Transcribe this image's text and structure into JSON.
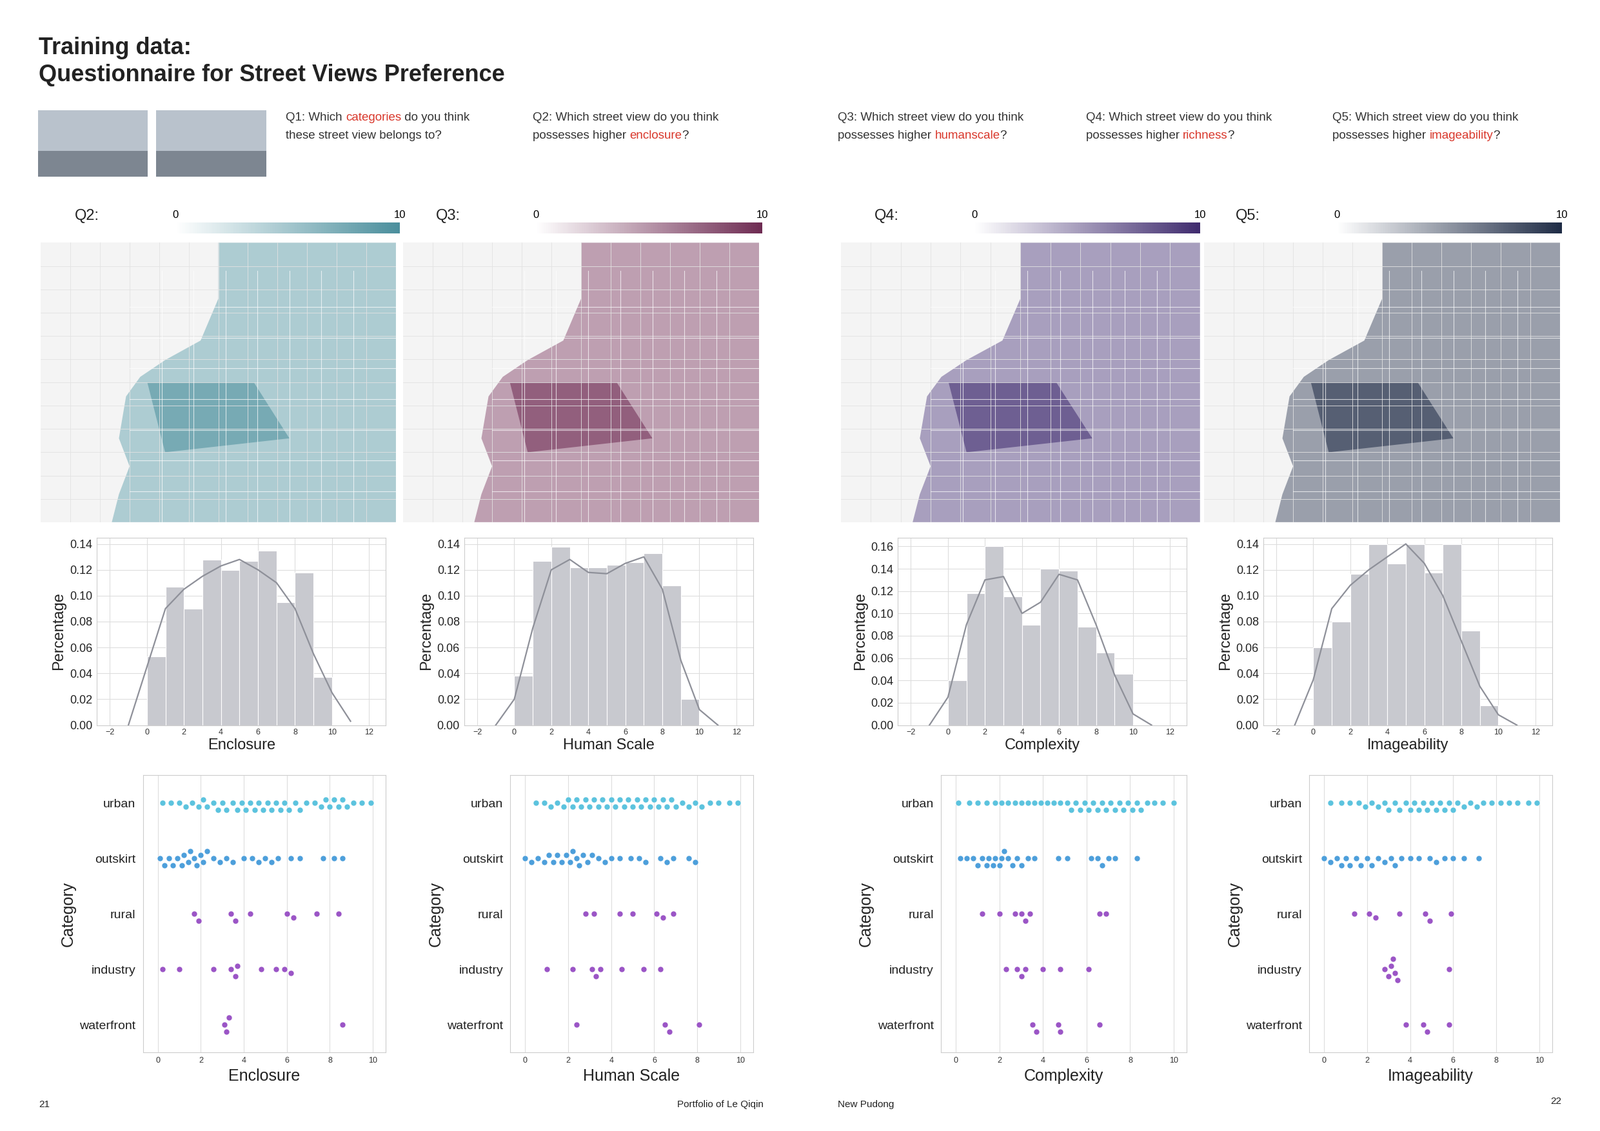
{
  "header": {
    "title": [
      "Training data:",
      "Questionnaire for Street Views Preference"
    ]
  },
  "questions": {
    "color": "#333333",
    "highlight_color": "#d9382c",
    "items": [
      {
        "lines": [
          [
            {
              "text": "Q1: Which ",
              "highlight": false
            },
            {
              "text": "categories",
              "highlight": true
            },
            {
              "text": " do you think",
              "highlight": false
            }
          ],
          [
            {
              "text": "these street view belongs to?",
              "highlight": false
            }
          ]
        ]
      },
      {
        "lines": [
          [
            {
              "text": "Q2: Which street view do you think",
              "highlight": false
            }
          ],
          [
            {
              "text": "possesses higher ",
              "highlight": false
            },
            {
              "text": "enclosure",
              "highlight": true
            },
            {
              "text": "?",
              "highlight": false
            }
          ]
        ]
      },
      {
        "lines": [
          [
            {
              "text": "Q3: Which street view do you think",
              "highlight": false
            }
          ],
          [
            {
              "text": "possesses higher ",
              "highlight": false
            },
            {
              "text": "humanscale",
              "highlight": true
            },
            {
              "text": "?",
              "highlight": false
            }
          ]
        ]
      },
      {
        "lines": [
          [
            {
              "text": "Q4: Which street view do you think",
              "highlight": false
            }
          ],
          [
            {
              "text": "possesses higher ",
              "highlight": false
            },
            {
              "text": "richness",
              "highlight": true
            },
            {
              "text": "?",
              "highlight": false
            }
          ]
        ]
      },
      {
        "lines": [
          [
            {
              "text": "Q5: Which street view do you think",
              "highlight": false
            }
          ],
          [
            {
              "text": "possesses higher ",
              "highlight": false
            },
            {
              "text": "imageability",
              "highlight": true
            },
            {
              "text": "?",
              "highlight": false
            }
          ]
        ]
      }
    ]
  },
  "legends": [
    {
      "label": "Q2:",
      "range": [
        0,
        10
      ],
      "ticks": [
        0,
        10
      ],
      "color": "#4a8e9c"
    },
    {
      "label": "Q3:",
      "range": [
        0,
        10
      ],
      "ticks": [
        0,
        10
      ],
      "color": "#6e2b52"
    },
    {
      "label": "Q4:",
      "range": [
        0,
        10
      ],
      "ticks": [
        0,
        10
      ],
      "color": "#3f2b6e"
    },
    {
      "label": "Q5:",
      "range": [
        0,
        10
      ],
      "ticks": [
        0,
        10
      ],
      "color": "#1e2b45"
    }
  ],
  "chart_data": [
    {
      "type": "histogram",
      "xlabel": "Enclosure",
      "ylabel": "Percentage",
      "color": "#c8c9cf",
      "bins": [
        0,
        1,
        2,
        3,
        4,
        5,
        6,
        7,
        8,
        9,
        10
      ],
      "counts": [
        0.053,
        0.107,
        0.09,
        0.128,
        0.12,
        0.127,
        0.135,
        0.095,
        0.118,
        0.037
      ],
      "kde": {
        "color": "#8e9099",
        "x": [
          -1,
          0,
          1,
          2,
          3,
          4,
          5,
          6,
          7,
          8,
          9,
          10,
          11
        ],
        "values": [
          0.0,
          0.045,
          0.09,
          0.105,
          0.115,
          0.123,
          0.128,
          0.12,
          0.11,
          0.09,
          0.055,
          0.025,
          0.003
        ]
      },
      "xlim": [
        -2.7,
        12.9
      ],
      "ylim": [
        0,
        0.145
      ],
      "xticks": [
        {
          "value": -2,
          "label": "−2"
        },
        0,
        2,
        4,
        6,
        8,
        10,
        12
      ],
      "yticks": [
        {
          "value": 0.0,
          "label": "0.00"
        },
        {
          "value": 0.02,
          "label": "0.02"
        },
        {
          "value": 0.04,
          "label": "0.04"
        },
        {
          "value": 0.06,
          "label": "0.06"
        },
        {
          "value": 0.08,
          "label": "0.08"
        },
        {
          "value": 0.1,
          "label": "0.10"
        },
        {
          "value": 0.12,
          "label": "0.12"
        },
        {
          "value": 0.14,
          "label": "0.14"
        }
      ],
      "grid": true
    },
    {
      "type": "histogram",
      "xlabel": "Human Scale",
      "ylabel": "Percentage",
      "color": "#c8c9cf",
      "bins": [
        0,
        1,
        2,
        3,
        4,
        5,
        6,
        7,
        8,
        9,
        10
      ],
      "counts": [
        0.038,
        0.127,
        0.138,
        0.122,
        0.122,
        0.124,
        0.126,
        0.133,
        0.108,
        0.02
      ],
      "kde": {
        "color": "#8e9099",
        "x": [
          -1,
          0,
          1,
          2,
          3,
          4,
          5,
          6,
          7,
          8,
          9,
          10,
          11
        ],
        "values": [
          0.0,
          0.02,
          0.075,
          0.12,
          0.128,
          0.118,
          0.117,
          0.125,
          0.13,
          0.105,
          0.05,
          0.012,
          0.0
        ]
      },
      "xlim": [
        -2.7,
        12.9
      ],
      "ylim": [
        0,
        0.145
      ],
      "xticks": [
        {
          "value": -2,
          "label": "−2"
        },
        0,
        2,
        4,
        6,
        8,
        10,
        12
      ],
      "yticks": [
        {
          "value": 0.0,
          "label": "0.00"
        },
        {
          "value": 0.02,
          "label": "0.02"
        },
        {
          "value": 0.04,
          "label": "0.04"
        },
        {
          "value": 0.06,
          "label": "0.06"
        },
        {
          "value": 0.08,
          "label": "0.08"
        },
        {
          "value": 0.1,
          "label": "0.10"
        },
        {
          "value": 0.12,
          "label": "0.12"
        },
        {
          "value": 0.14,
          "label": "0.14"
        }
      ],
      "grid": true
    },
    {
      "type": "histogram",
      "xlabel": "Complexity",
      "ylabel": "Percentage",
      "color": "#c8c9cf",
      "bins": [
        0,
        1,
        2,
        3,
        4,
        5,
        6,
        7,
        8,
        9,
        10
      ],
      "counts": [
        0.04,
        0.118,
        0.16,
        0.115,
        0.09,
        0.14,
        0.138,
        0.088,
        0.065,
        0.046
      ],
      "kde": {
        "color": "#8e9099",
        "x": [
          -1,
          0,
          1,
          2,
          3,
          4,
          5,
          6,
          7,
          8,
          9,
          10,
          11
        ],
        "values": [
          0.0,
          0.025,
          0.09,
          0.13,
          0.133,
          0.1,
          0.11,
          0.135,
          0.13,
          0.09,
          0.045,
          0.01,
          0.0
        ]
      },
      "xlim": [
        -2.7,
        12.9
      ],
      "ylim": [
        0,
        0.168
      ],
      "xticks": [
        {
          "value": -2,
          "label": "−2"
        },
        0,
        2,
        4,
        6,
        8,
        10,
        12
      ],
      "yticks": [
        {
          "value": 0.0,
          "label": "0.00"
        },
        {
          "value": 0.02,
          "label": "0.02"
        },
        {
          "value": 0.04,
          "label": "0.04"
        },
        {
          "value": 0.06,
          "label": "0.06"
        },
        {
          "value": 0.08,
          "label": "0.08"
        },
        {
          "value": 0.1,
          "label": "0.10"
        },
        {
          "value": 0.12,
          "label": "0.12"
        },
        {
          "value": 0.14,
          "label": "0.14"
        },
        {
          "value": 0.16,
          "label": "0.16"
        }
      ],
      "grid": true
    },
    {
      "type": "histogram",
      "xlabel": "Imageability",
      "ylabel": "Percentage",
      "color": "#c8c9cf",
      "bins": [
        0,
        1,
        2,
        3,
        4,
        5,
        6,
        7,
        8,
        9,
        10
      ],
      "counts": [
        0.06,
        0.08,
        0.117,
        0.14,
        0.125,
        0.14,
        0.118,
        0.14,
        0.073,
        0.015
      ],
      "kde": {
        "color": "#8e9099",
        "x": [
          -1,
          0,
          1,
          2,
          3,
          4,
          5,
          6,
          7,
          8,
          9,
          10,
          11
        ],
        "values": [
          0.0,
          0.035,
          0.09,
          0.108,
          0.12,
          0.13,
          0.14,
          0.125,
          0.1,
          0.065,
          0.03,
          0.008,
          0.0
        ]
      },
      "xlim": [
        -2.7,
        12.9
      ],
      "ylim": [
        0,
        0.145
      ],
      "xticks": [
        {
          "value": -2,
          "label": "−2"
        },
        0,
        2,
        4,
        6,
        8,
        10,
        12
      ],
      "yticks": [
        {
          "value": 0.0,
          "label": "0.00"
        },
        {
          "value": 0.02,
          "label": "0.02"
        },
        {
          "value": 0.04,
          "label": "0.04"
        },
        {
          "value": 0.06,
          "label": "0.06"
        },
        {
          "value": 0.08,
          "label": "0.08"
        },
        {
          "value": 0.1,
          "label": "0.10"
        },
        {
          "value": 0.12,
          "label": "0.12"
        },
        {
          "value": 0.14,
          "label": "0.14"
        }
      ],
      "grid": true
    },
    {
      "type": "swarm",
      "orientation": "horizontal",
      "xlabel": "Enclosure",
      "ylabel": "Category",
      "categories": [
        "urban",
        "outskirt",
        "rural",
        "industry",
        "waterfront"
      ],
      "colors": [
        "#5cc3de",
        "#4d9fdb",
        "#9b55c6",
        "#9b55c6",
        "#9b55c6"
      ],
      "values": [
        [
          0.2,
          0.6,
          1.0,
          1.3,
          1.6,
          1.9,
          2.1,
          2.3,
          2.6,
          2.8,
          3.0,
          3.2,
          3.5,
          3.7,
          3.9,
          4.1,
          4.3,
          4.5,
          4.7,
          4.9,
          5.1,
          5.3,
          5.5,
          5.7,
          5.9,
          6.1,
          6.4,
          6.6,
          6.9,
          7.3,
          7.6,
          7.8,
          8.0,
          8.2,
          8.4,
          8.6,
          8.8,
          9.1,
          9.5,
          9.9
        ],
        [
          0.1,
          0.3,
          0.5,
          0.7,
          0.9,
          1.1,
          1.2,
          1.4,
          1.5,
          1.7,
          1.8,
          2.0,
          2.1,
          2.3,
          2.6,
          2.9,
          3.2,
          3.5,
          4.0,
          4.4,
          4.7,
          5.0,
          5.3,
          5.6,
          6.2,
          6.6,
          7.7,
          8.2,
          8.6
        ],
        [
          1.7,
          1.9,
          3.4,
          3.6,
          4.3,
          6.0,
          6.3,
          7.4,
          8.4
        ],
        [
          0.2,
          1.0,
          2.6,
          3.4,
          3.6,
          3.7,
          4.8,
          5.5,
          5.9,
          6.2
        ],
        [
          3.1,
          3.2,
          3.3,
          8.6
        ]
      ],
      "xlim": [
        -0.7,
        10.6
      ],
      "xticks": [
        0,
        2,
        4,
        6,
        8,
        10
      ],
      "grid": true
    },
    {
      "type": "swarm",
      "orientation": "horizontal",
      "xlabel": "Human Scale",
      "ylabel": "Category",
      "categories": [
        "urban",
        "outskirt",
        "rural",
        "industry",
        "waterfront"
      ],
      "colors": [
        "#5cc3de",
        "#4d9fdb",
        "#9b55c6",
        "#9b55c6",
        "#9b55c6"
      ],
      "values": [
        [
          0.5,
          0.9,
          1.2,
          1.5,
          1.8,
          2.0,
          2.2,
          2.4,
          2.6,
          2.8,
          3.0,
          3.2,
          3.4,
          3.6,
          3.8,
          4.0,
          4.2,
          4.4,
          4.6,
          4.8,
          5.0,
          5.2,
          5.4,
          5.6,
          5.8,
          6.0,
          6.2,
          6.4,
          6.6,
          6.8,
          7.0,
          7.3,
          7.6,
          7.9,
          8.2,
          8.6,
          9.0,
          9.5,
          9.9
        ],
        [
          0.0,
          0.3,
          0.6,
          0.9,
          1.1,
          1.3,
          1.5,
          1.7,
          1.9,
          2.1,
          2.2,
          2.4,
          2.5,
          2.7,
          2.9,
          3.1,
          3.4,
          3.7,
          4.0,
          4.4,
          4.9,
          5.3,
          5.6,
          6.3,
          6.6,
          6.9,
          7.6,
          7.9
        ],
        [
          2.8,
          3.2,
          4.4,
          5.0,
          6.1,
          6.4,
          6.9
        ],
        [
          1.0,
          2.2,
          3.1,
          3.3,
          3.5,
          4.5,
          5.5,
          6.3
        ],
        [
          2.4,
          6.5,
          6.7,
          8.1
        ]
      ],
      "xlim": [
        -0.7,
        10.6
      ],
      "xticks": [
        0,
        2,
        4,
        6,
        8,
        10
      ],
      "grid": true
    },
    {
      "type": "swarm",
      "orientation": "horizontal",
      "xlabel": "Complexity",
      "ylabel": "Category",
      "categories": [
        "urban",
        "outskirt",
        "rural",
        "industry",
        "waterfront"
      ],
      "colors": [
        "#5cc3de",
        "#4d9fdb",
        "#9b55c6",
        "#9b55c6",
        "#9b55c6"
      ],
      "values": [
        [
          0.1,
          0.6,
          1.0,
          1.4,
          1.8,
          2.1,
          2.4,
          2.7,
          3.0,
          3.3,
          3.6,
          3.9,
          4.2,
          4.5,
          4.8,
          5.1,
          5.3,
          5.5,
          5.7,
          5.9,
          6.1,
          6.3,
          6.5,
          6.7,
          6.9,
          7.1,
          7.3,
          7.5,
          7.7,
          7.9,
          8.1,
          8.3,
          8.5,
          8.8,
          9.1,
          9.5,
          10.0
        ],
        [
          0.2,
          0.5,
          0.8,
          1.0,
          1.2,
          1.4,
          1.5,
          1.7,
          1.8,
          2.0,
          2.1,
          2.2,
          2.4,
          2.6,
          2.8,
          3.0,
          3.3,
          3.6,
          4.7,
          5.1,
          6.2,
          6.5,
          6.7,
          7.0,
          7.3,
          8.3
        ],
        [
          1.2,
          2.0,
          2.7,
          3.0,
          3.2,
          3.4,
          6.6,
          6.9
        ],
        [
          2.3,
          2.8,
          3.0,
          3.2,
          4.0,
          4.8,
          6.1
        ],
        [
          3.5,
          3.7,
          4.7,
          4.8,
          6.6
        ]
      ],
      "xlim": [
        -0.7,
        10.6
      ],
      "xticks": [
        0,
        2,
        4,
        6,
        8,
        10
      ],
      "grid": true
    },
    {
      "type": "swarm",
      "orientation": "horizontal",
      "xlabel": "Imageability",
      "ylabel": "Category",
      "categories": [
        "urban",
        "outskirt",
        "rural",
        "industry",
        "waterfront"
      ],
      "colors": [
        "#5cc3de",
        "#4d9fdb",
        "#9b55c6",
        "#9b55c6",
        "#9b55c6"
      ],
      "values": [
        [
          0.3,
          0.8,
          1.2,
          1.6,
          1.9,
          2.2,
          2.5,
          2.8,
          3.0,
          3.3,
          3.5,
          3.8,
          4.0,
          4.2,
          4.4,
          4.6,
          4.8,
          5.0,
          5.2,
          5.4,
          5.6,
          5.8,
          6.0,
          6.2,
          6.5,
          6.8,
          7.1,
          7.4,
          7.8,
          8.2,
          8.6,
          9.0,
          9.5,
          9.9
        ],
        [
          0.0,
          0.3,
          0.6,
          0.8,
          1.0,
          1.2,
          1.5,
          1.7,
          2.0,
          2.2,
          2.5,
          2.8,
          3.1,
          3.3,
          3.6,
          4.0,
          4.4,
          4.9,
          5.2,
          5.6,
          6.0,
          6.5,
          7.2
        ],
        [
          1.4,
          2.1,
          2.4,
          3.5,
          4.7,
          4.9,
          5.9
        ],
        [
          2.8,
          3.0,
          3.1,
          3.2,
          3.3,
          3.4,
          5.8
        ],
        [
          3.8,
          4.6,
          4.8,
          5.8
        ]
      ],
      "xlim": [
        -0.7,
        10.6
      ],
      "xticks": [
        0,
        2,
        4,
        6,
        8,
        10
      ],
      "grid": true
    }
  ],
  "footer": {
    "left_page": "21",
    "left_text": "Portfolio of Le Qiqin",
    "right_text": "New Pudong",
    "right_page": "22"
  }
}
